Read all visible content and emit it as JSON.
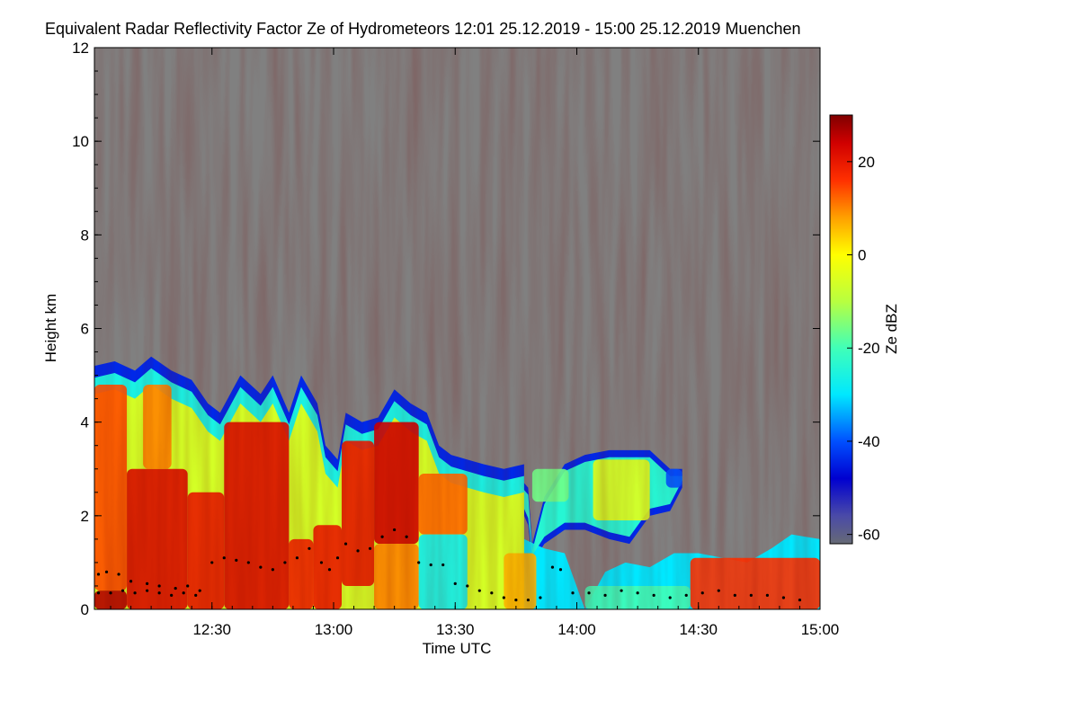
{
  "chart_data": {
    "type": "heatmap",
    "title": "Equivalent Radar Reflectivity Factor Ze of Hydrometeors   12:01 25.12.2019 - 15:00 25.12.2019 Muenchen",
    "xlabel": "Time UTC",
    "ylabel": "Height km",
    "x_range_minutes_utc": [
      721,
      900
    ],
    "x_ticks": [
      {
        "label": "12:30",
        "minutes": 750
      },
      {
        "label": "13:00",
        "minutes": 780
      },
      {
        "label": "13:30",
        "minutes": 810
      },
      {
        "label": "14:00",
        "minutes": 840
      },
      {
        "label": "14:30",
        "minutes": 870
      },
      {
        "label": "15:00",
        "minutes": 900
      }
    ],
    "y_range_km": [
      0,
      12
    ],
    "y_ticks": [
      {
        "label": "0",
        "value": 0
      },
      {
        "label": "2",
        "value": 2
      },
      {
        "label": "4",
        "value": 4
      },
      {
        "label": "6",
        "value": 6
      },
      {
        "label": "8",
        "value": 8
      },
      {
        "label": "10",
        "value": 10
      },
      {
        "label": "12",
        "value": 12
      }
    ],
    "colorbar": {
      "label": "Ze dBZ",
      "range": [
        -62,
        30
      ],
      "ticks": [
        {
          "label": "20",
          "value": 20
        },
        {
          "label": "0",
          "value": 0
        },
        {
          "label": "-20",
          "value": -20
        },
        {
          "label": "-40",
          "value": -40
        },
        {
          "label": "-60",
          "value": -60
        }
      ],
      "stops": [
        {
          "value": -62,
          "color": "#666a75"
        },
        {
          "value": -56,
          "color": "#4a4aa8"
        },
        {
          "value": -48,
          "color": "#0000d0"
        },
        {
          "value": -40,
          "color": "#0050ff"
        },
        {
          "value": -30,
          "color": "#00e8ff"
        },
        {
          "value": -20,
          "color": "#40ffb8"
        },
        {
          "value": -10,
          "color": "#b8ff40"
        },
        {
          "value": 0,
          "color": "#ffff00"
        },
        {
          "value": 8,
          "color": "#ffa000"
        },
        {
          "value": 16,
          "color": "#ff3000"
        },
        {
          "value": 24,
          "color": "#d00000"
        },
        {
          "value": 30,
          "color": "#800000"
        }
      ]
    },
    "background_color": "#808080",
    "no_signal_color": "#808080",
    "echo_top_profile_km": [
      {
        "t": 721,
        "top": 5.2
      },
      {
        "t": 726,
        "top": 5.3
      },
      {
        "t": 731,
        "top": 5.1
      },
      {
        "t": 735,
        "top": 5.4
      },
      {
        "t": 740,
        "top": 5.1
      },
      {
        "t": 745,
        "top": 4.9
      },
      {
        "t": 749,
        "top": 4.4
      },
      {
        "t": 752,
        "top": 4.2
      },
      {
        "t": 757,
        "top": 5.0
      },
      {
        "t": 762,
        "top": 4.6
      },
      {
        "t": 765,
        "top": 5.0
      },
      {
        "t": 769,
        "top": 4.2
      },
      {
        "t": 772,
        "top": 5.0
      },
      {
        "t": 776,
        "top": 4.4
      },
      {
        "t": 778,
        "top": 3.5
      },
      {
        "t": 781,
        "top": 3.2
      },
      {
        "t": 783,
        "top": 4.2
      },
      {
        "t": 787,
        "top": 4.0
      },
      {
        "t": 791,
        "top": 4.1
      },
      {
        "t": 795,
        "top": 4.7
      },
      {
        "t": 799,
        "top": 4.4
      },
      {
        "t": 803,
        "top": 4.2
      },
      {
        "t": 806,
        "top": 3.5
      },
      {
        "t": 809,
        "top": 3.3
      },
      {
        "t": 813,
        "top": 3.2
      },
      {
        "t": 817,
        "top": 3.1
      },
      {
        "t": 822,
        "top": 3.0
      },
      {
        "t": 827,
        "top": 3.1
      }
    ],
    "echo_profile_east_km": [
      {
        "t": 826,
        "bottom": 2.2,
        "top": 2.8
      },
      {
        "t": 828,
        "bottom": 1.8,
        "top": 2.6
      },
      {
        "t": 829,
        "bottom": 1.0,
        "top": 1.4
      },
      {
        "t": 832,
        "bottom": 1.4,
        "top": 2.4
      },
      {
        "t": 837,
        "bottom": 1.7,
        "top": 3.1
      },
      {
        "t": 842,
        "bottom": 1.7,
        "top": 3.3
      },
      {
        "t": 848,
        "bottom": 1.5,
        "top": 3.4
      },
      {
        "t": 853,
        "bottom": 1.4,
        "top": 3.4
      },
      {
        "t": 858,
        "bottom": 2.0,
        "top": 3.4
      },
      {
        "t": 863,
        "bottom": 2.1,
        "top": 3.0
      },
      {
        "t": 866,
        "bottom": 2.6,
        "top": 3.0
      }
    ],
    "low_layer_top_profile_km": [
      {
        "t": 818,
        "top": 0.0
      },
      {
        "t": 822,
        "top": 1.4
      },
      {
        "t": 827,
        "top": 1.5
      },
      {
        "t": 832,
        "top": 1.3
      },
      {
        "t": 837,
        "top": 1.2
      },
      {
        "t": 842,
        "top": 0.0
      },
      {
        "t": 847,
        "top": 0.8
      },
      {
        "t": 852,
        "top": 1.0
      },
      {
        "t": 858,
        "top": 0.9
      },
      {
        "t": 864,
        "top": 1.2
      },
      {
        "t": 870,
        "top": 1.2
      },
      {
        "t": 876,
        "top": 1.1
      },
      {
        "t": 882,
        "top": 1.0
      },
      {
        "t": 888,
        "top": 1.3
      },
      {
        "t": 893,
        "top": 1.6
      },
      {
        "t": 900,
        "top": 1.5
      }
    ],
    "cloud_base_points_km": [
      {
        "t": 722,
        "h": 0.75
      },
      {
        "t": 724,
        "h": 0.8
      },
      {
        "t": 727,
        "h": 0.75
      },
      {
        "t": 730,
        "h": 0.6
      },
      {
        "t": 734,
        "h": 0.55
      },
      {
        "t": 737,
        "h": 0.5
      },
      {
        "t": 741,
        "h": 0.45
      },
      {
        "t": 744,
        "h": 0.5
      },
      {
        "t": 747,
        "h": 0.4
      },
      {
        "t": 750,
        "h": 1.0
      },
      {
        "t": 753,
        "h": 1.1
      },
      {
        "t": 756,
        "h": 1.05
      },
      {
        "t": 759,
        "h": 1.0
      },
      {
        "t": 762,
        "h": 0.9
      },
      {
        "t": 765,
        "h": 0.85
      },
      {
        "t": 768,
        "h": 1.0
      },
      {
        "t": 771,
        "h": 1.1
      },
      {
        "t": 774,
        "h": 1.3
      },
      {
        "t": 777,
        "h": 1.0
      },
      {
        "t": 779,
        "h": 0.85
      },
      {
        "t": 781,
        "h": 1.1
      },
      {
        "t": 783,
        "h": 1.4
      },
      {
        "t": 786,
        "h": 1.25
      },
      {
        "t": 789,
        "h": 1.3
      },
      {
        "t": 792,
        "h": 1.55
      },
      {
        "t": 795,
        "h": 1.7
      },
      {
        "t": 798,
        "h": 1.55
      },
      {
        "t": 801,
        "h": 1.0
      },
      {
        "t": 804,
        "h": 0.95
      },
      {
        "t": 807,
        "h": 0.95
      },
      {
        "t": 810,
        "h": 0.55
      },
      {
        "t": 813,
        "h": 0.5
      },
      {
        "t": 816,
        "h": 0.4
      },
      {
        "t": 819,
        "h": 0.35
      },
      {
        "t": 822,
        "h": 0.25
      },
      {
        "t": 825,
        "h": 0.2
      },
      {
        "t": 828,
        "h": 0.2
      },
      {
        "t": 831,
        "h": 0.25
      },
      {
        "t": 834,
        "h": 0.9
      },
      {
        "t": 836,
        "h": 0.85
      },
      {
        "t": 839,
        "h": 0.35
      },
      {
        "t": 843,
        "h": 0.35
      },
      {
        "t": 847,
        "h": 0.3
      },
      {
        "t": 851,
        "h": 0.4
      },
      {
        "t": 855,
        "h": 0.35
      },
      {
        "t": 859,
        "h": 0.3
      },
      {
        "t": 863,
        "h": 0.25
      },
      {
        "t": 867,
        "h": 0.3
      },
      {
        "t": 871,
        "h": 0.35
      },
      {
        "t": 875,
        "h": 0.4
      },
      {
        "t": 879,
        "h": 0.3
      },
      {
        "t": 883,
        "h": 0.3
      },
      {
        "t": 887,
        "h": 0.3
      },
      {
        "t": 891,
        "h": 0.25
      },
      {
        "t": 895,
        "h": 0.2
      }
    ],
    "surface_points_km": [
      {
        "t": 722,
        "h": 0.35
      },
      {
        "t": 725,
        "h": 0.35
      },
      {
        "t": 728,
        "h": 0.4
      },
      {
        "t": 731,
        "h": 0.35
      },
      {
        "t": 734,
        "h": 0.4
      },
      {
        "t": 737,
        "h": 0.35
      },
      {
        "t": 740,
        "h": 0.3
      },
      {
        "t": 743,
        "h": 0.35
      },
      {
        "t": 746,
        "h": 0.3
      }
    ],
    "cells": [
      {
        "t1": 721,
        "t2": 729,
        "h1": 0.4,
        "h2": 4.8,
        "z": 14
      },
      {
        "t1": 721,
        "t2": 729,
        "h1": 0.0,
        "h2": 0.4,
        "z": 26
      },
      {
        "t1": 729,
        "t2": 744,
        "h1": 0.0,
        "h2": 3.0,
        "z": 22
      },
      {
        "t1": 744,
        "t2": 753,
        "h1": 0.0,
        "h2": 2.5,
        "z": 20
      },
      {
        "t1": 733,
        "t2": 740,
        "h1": 3.0,
        "h2": 4.8,
        "z": 10
      },
      {
        "t1": 753,
        "t2": 769,
        "h1": 0.0,
        "h2": 4.0,
        "z": 22
      },
      {
        "t1": 769,
        "t2": 775,
        "h1": 0.0,
        "h2": 1.5,
        "z": 18
      },
      {
        "t1": 775,
        "t2": 782,
        "h1": 0.0,
        "h2": 1.8,
        "z": 20
      },
      {
        "t1": 782,
        "t2": 790,
        "h1": 0.5,
        "h2": 3.6,
        "z": 20
      },
      {
        "t1": 790,
        "t2": 801,
        "h1": 1.4,
        "h2": 4.0,
        "z": 24
      },
      {
        "t1": 790,
        "t2": 801,
        "h1": 0.0,
        "h2": 1.4,
        "z": 10
      },
      {
        "t1": 801,
        "t2": 813,
        "h1": 1.6,
        "h2": 2.9,
        "z": 12
      },
      {
        "t1": 801,
        "t2": 813,
        "h1": 0.0,
        "h2": 1.6,
        "z": -28
      },
      {
        "t1": 829,
        "t2": 838,
        "h1": 2.3,
        "h2": 3.0,
        "z": -16
      },
      {
        "t1": 844,
        "t2": 858,
        "h1": 1.9,
        "h2": 3.2,
        "z": -4
      },
      {
        "t1": 862,
        "t2": 866,
        "h1": 2.6,
        "h2": 3.0,
        "z": -40
      },
      {
        "t1": 822,
        "t2": 830,
        "h1": 0.0,
        "h2": 1.2,
        "z": 6
      },
      {
        "t1": 868,
        "t2": 900,
        "h1": 0.0,
        "h2": 1.1,
        "z": 16
      },
      {
        "t1": 842,
        "t2": 868,
        "h1": 0.0,
        "h2": 0.5,
        "z": -20
      }
    ]
  }
}
